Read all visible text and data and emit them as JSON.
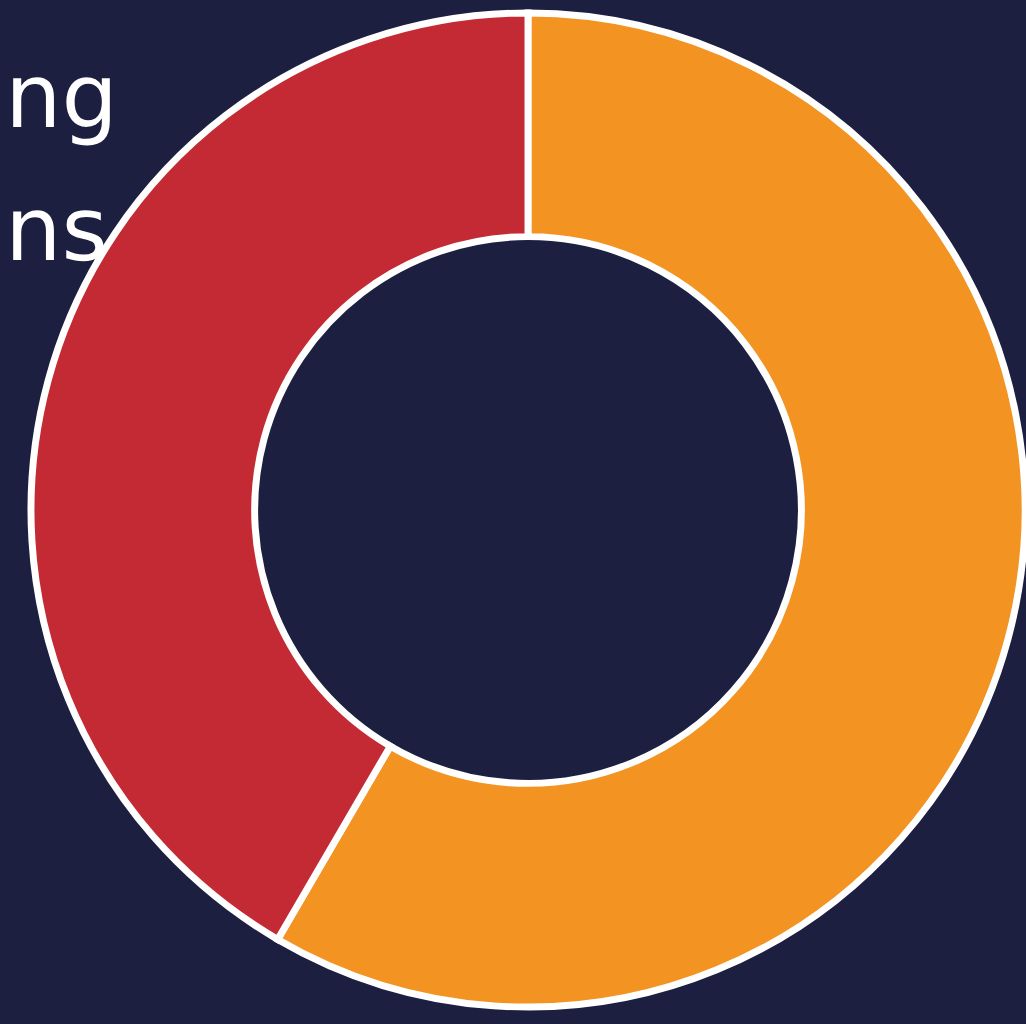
{
  "chart_data": {
    "type": "donut",
    "categories": [
      null,
      null
    ],
    "values": [
      58.4,
      41.6
    ],
    "colors": [
      "#f39322",
      "#c42a33"
    ],
    "annotations": [
      "ng",
      "ns"
    ]
  }
}
